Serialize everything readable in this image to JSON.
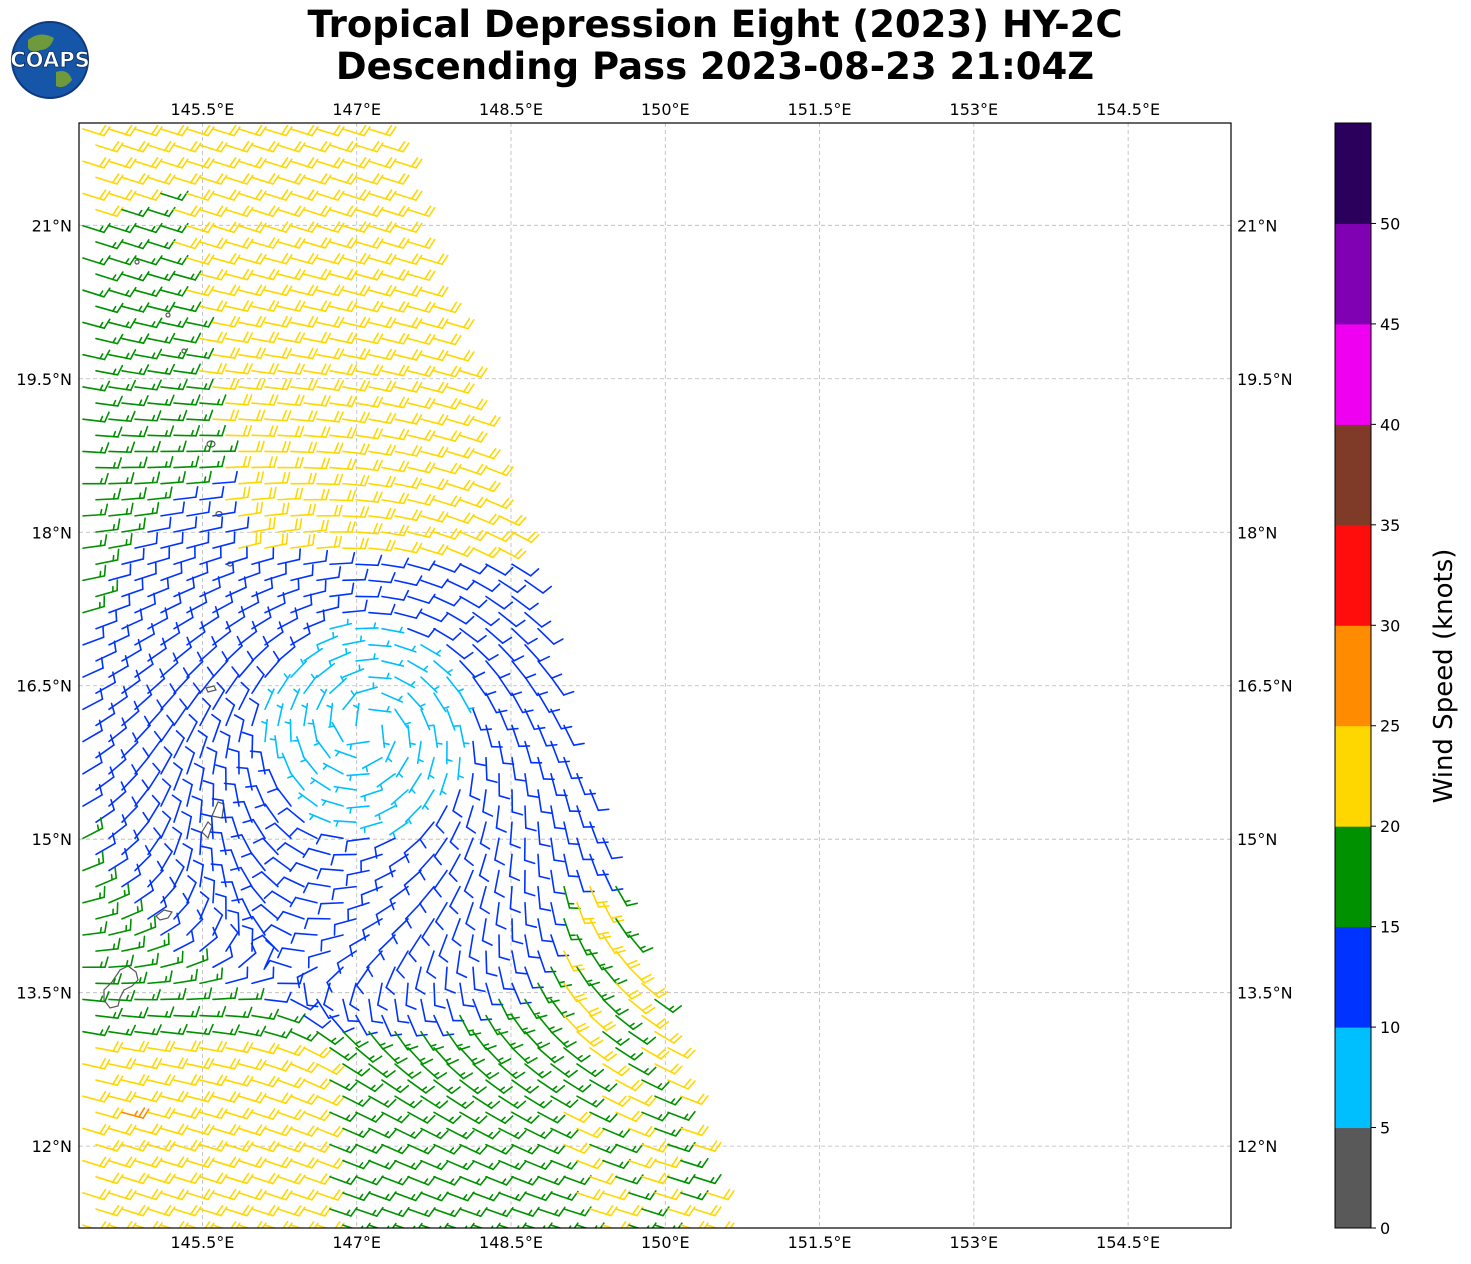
{
  "title": {
    "line1": "Tropical Depression Eight (2023) HY-2C",
    "line2": "Descending Pass 2023-08-23 21:04Z"
  },
  "logo": {
    "text": "COAPS"
  },
  "map": {
    "type": "wind barb map",
    "lon_range": [
      144.3,
      155.5
    ],
    "lat_range": [
      11.2,
      22.0
    ],
    "lon_ticks": [
      "145.5°E",
      "147°E",
      "148.5°E",
      "150°E",
      "151.5°E",
      "153°E",
      "154.5°E"
    ],
    "lat_ticks": [
      "21°N",
      "19.5°N",
      "18°N",
      "16.5°N",
      "15°N",
      "13.5°N",
      "12°N"
    ],
    "grid": true,
    "storm_center_approx": {
      "lon": 147.1,
      "lat": 16.1
    }
  },
  "colorbar": {
    "label": "Wind Speed (knots)",
    "ticks": [
      "0",
      "5",
      "10",
      "15",
      "20",
      "25",
      "30",
      "35",
      "40",
      "45",
      "50"
    ],
    "colors": [
      "#595959",
      "#00bfff",
      "#0033ff",
      "#009100",
      "#ffd700",
      "#ff8c00",
      "#ff0d0d",
      "#803b28",
      "#f000f0",
      "#8000b3",
      "#2b005c"
    ]
  }
}
